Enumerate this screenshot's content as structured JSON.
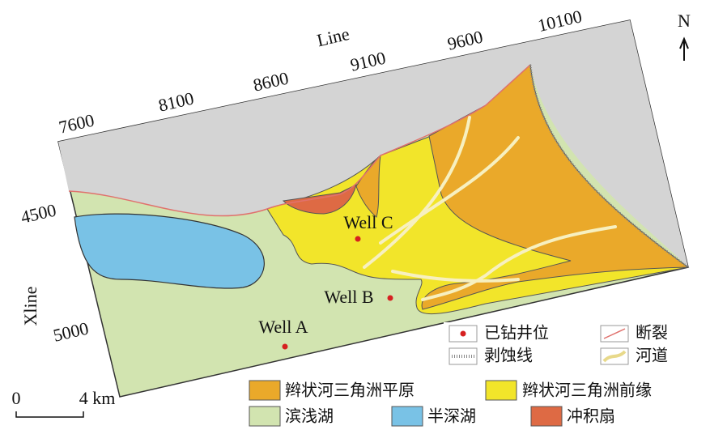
{
  "axes": {
    "line_title": "Line",
    "line_ticks": [
      7600,
      8100,
      8600,
      9100,
      9600,
      10100
    ],
    "xline_title": "Xline",
    "xline_ticks": [
      4500,
      5000
    ]
  },
  "north": "N",
  "wells": [
    {
      "label": "Well A"
    },
    {
      "label": "Well B"
    },
    {
      "label": "Well C"
    }
  ],
  "legend": [
    {
      "label": "已钻井位"
    },
    {
      "label": "断裂"
    },
    {
      "label": "剥蚀线"
    },
    {
      "label": "河道"
    },
    {
      "label": "辫状河三角洲平原"
    },
    {
      "label": "辫状河三角洲前缘"
    },
    {
      "label": "滨浅湖"
    },
    {
      "label": "半深湖"
    },
    {
      "label": "冲积扇"
    }
  ],
  "scale": {
    "start": "0",
    "end": "4 km"
  }
}
